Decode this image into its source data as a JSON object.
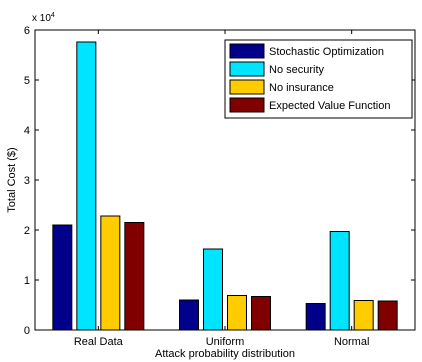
{
  "chart_data": {
    "type": "bar",
    "categories": [
      "Real Data",
      "Uniform",
      "Normal"
    ],
    "series": [
      {
        "name": "Stochastic Optimization",
        "color": "#00008b",
        "values": [
          21000,
          6000,
          5300
        ]
      },
      {
        "name": "No security",
        "color": "#00e5ff",
        "values": [
          57600,
          16200,
          19700
        ]
      },
      {
        "name": "No insurance",
        "color": "#ffcc00",
        "values": [
          22800,
          6900,
          5900
        ]
      },
      {
        "name": "Expected Value Function",
        "color": "#800000",
        "values": [
          21500,
          6700,
          5800
        ]
      }
    ],
    "title": "",
    "xlabel": "Attack probability distribution",
    "ylabel": "Total Cost ($)",
    "ylim": [
      0,
      60000
    ],
    "yticks": [
      0,
      1,
      2,
      3,
      4,
      5,
      6
    ],
    "y_multiplier": "x 10",
    "y_multiplier_exp": "4",
    "legend_position": "top-right",
    "grid": false
  }
}
